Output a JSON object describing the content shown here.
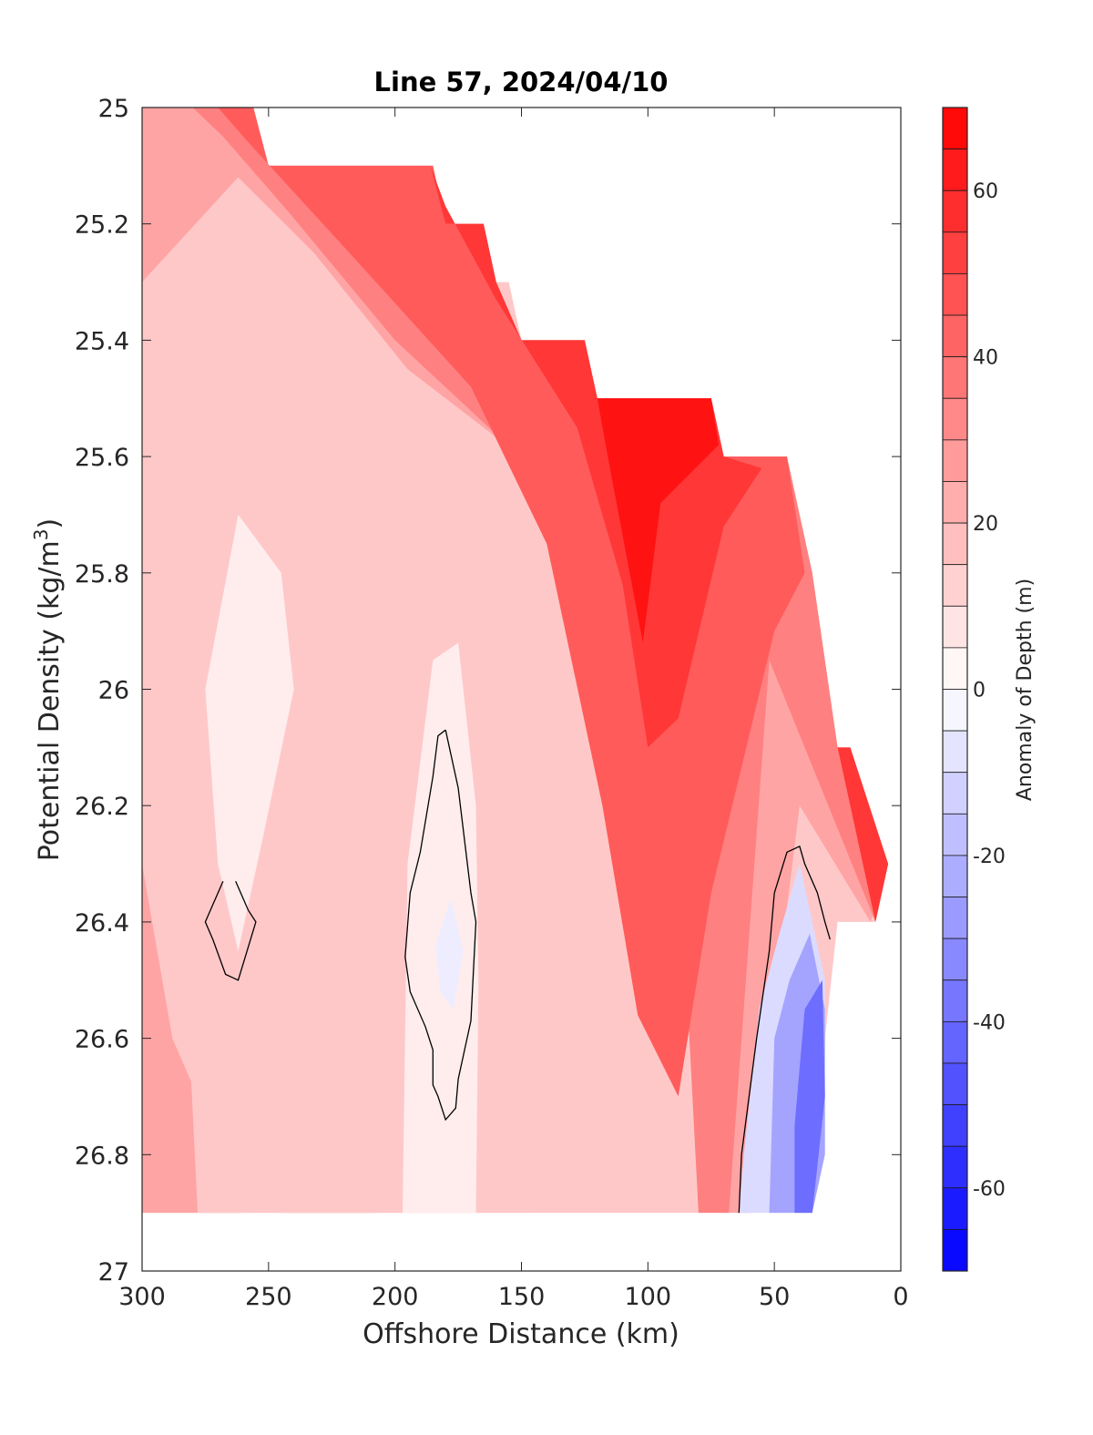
{
  "chart_data": {
    "type": "heatmap",
    "subtype": "filled-contour",
    "title": "Line 57, 2024/04/10",
    "xlabel": "Offshore Distance (km)",
    "ylabel": "Potential Density (kg/m",
    "ylabel_superscript": "3",
    "ylabel_suffix": ")",
    "colorbar_label": "Anomaly of Depth (m)",
    "xlim": [
      300,
      0
    ],
    "ylim": [
      25,
      27
    ],
    "x_reversed": true,
    "y_reversed": true,
    "xticks": [
      300,
      250,
      200,
      150,
      100,
      50,
      0
    ],
    "xtick_labels": [
      "300",
      "250",
      "200",
      "150",
      "100",
      "50",
      "0"
    ],
    "yticks": [
      25,
      25.2,
      25.4,
      25.6,
      25.8,
      26,
      26.2,
      26.4,
      26.6,
      26.8,
      27
    ],
    "ytick_labels": [
      "25",
      "25.2",
      "25.4",
      "25.6",
      "25.8",
      "26",
      "26.2",
      "26.4",
      "26.6",
      "26.8",
      "27"
    ],
    "clim": [
      -70,
      70
    ],
    "colorbar_ticks": [
      60,
      40,
      20,
      0,
      -20,
      -40,
      -60
    ],
    "colorbar_tick_labels": [
      "60",
      "40",
      "20",
      "0",
      "-20",
      "-40",
      "-60"
    ],
    "colorbar_levels": 28,
    "colormap": {
      "negative": "#0000ff",
      "zero": "#ffffff",
      "positive": "#ff0000"
    },
    "data_domain": {
      "top_boundary": [
        [
          300,
          25.0
        ],
        [
          256,
          25.0
        ],
        [
          250,
          25.1
        ],
        [
          185,
          25.1
        ],
        [
          180,
          25.2
        ],
        [
          165,
          25.2
        ],
        [
          160,
          25.3
        ],
        [
          155,
          25.3
        ],
        [
          150,
          25.4
        ],
        [
          125,
          25.4
        ],
        [
          120,
          25.5
        ],
        [
          75,
          25.5
        ],
        [
          70,
          25.6
        ],
        [
          45,
          25.6
        ],
        [
          35,
          25.8
        ],
        [
          25,
          26.1
        ],
        [
          20,
          26.1
        ],
        [
          5,
          26.3
        ],
        [
          10,
          26.4
        ],
        [
          25,
          26.4
        ],
        [
          30,
          26.6
        ],
        [
          35,
          26.8
        ],
        [
          35,
          26.9
        ]
      ],
      "bottom_density": 26.9
    },
    "regions": [
      {
        "value": 15,
        "polygon": [
          [
            300,
            25.0
          ],
          [
            256,
            25.0
          ],
          [
            250,
            25.1
          ],
          [
            185,
            25.1
          ],
          [
            180,
            25.2
          ],
          [
            165,
            25.2
          ],
          [
            160,
            25.3
          ],
          [
            155,
            25.3
          ],
          [
            150,
            25.4
          ],
          [
            125,
            25.4
          ],
          [
            120,
            25.5
          ],
          [
            75,
            25.5
          ],
          [
            70,
            25.6
          ],
          [
            45,
            25.6
          ],
          [
            35,
            25.8
          ],
          [
            25,
            26.1
          ],
          [
            20,
            26.1
          ],
          [
            5,
            26.3
          ],
          [
            10,
            26.4
          ],
          [
            25,
            26.4
          ],
          [
            30,
            26.6
          ],
          [
            35,
            26.8
          ],
          [
            35,
            26.9
          ],
          [
            300,
            26.9
          ]
        ]
      },
      {
        "value": 25,
        "polygon": [
          [
            300,
            25.0
          ],
          [
            280,
            25.0
          ],
          [
            250,
            25.12
          ],
          [
            185,
            25.12
          ],
          [
            180,
            25.2
          ],
          [
            165,
            25.2
          ],
          [
            160,
            25.3
          ],
          [
            150,
            25.4
          ],
          [
            120,
            25.5
          ],
          [
            70,
            25.6
          ],
          [
            45,
            25.62
          ],
          [
            35,
            25.85
          ],
          [
            25,
            26.15
          ],
          [
            8,
            26.35
          ],
          [
            12,
            26.4
          ],
          [
            40,
            26.2
          ],
          [
            60,
            26.9
          ],
          [
            70,
            26.9
          ],
          [
            78,
            26.4
          ],
          [
            92,
            26.1
          ],
          [
            118,
            25.8
          ],
          [
            150,
            25.6
          ],
          [
            195,
            25.45
          ],
          [
            232,
            25.25
          ],
          [
            262,
            25.12
          ],
          [
            300,
            25.3
          ]
        ]
      },
      {
        "value": 25,
        "polygon": [
          [
            300,
            26.3
          ],
          [
            288,
            26.6
          ],
          [
            270,
            26.78
          ],
          [
            260,
            26.9
          ],
          [
            300,
            26.9
          ]
        ]
      },
      {
        "value": 25,
        "polygon": [
          [
            244,
            26.9
          ],
          [
            238,
            26.62
          ],
          [
            230,
            26.48
          ],
          [
            212,
            26.5
          ],
          [
            203,
            26.68
          ],
          [
            208,
            26.9
          ]
        ]
      },
      {
        "value": 35,
        "polygon": [
          [
            280,
            25.0
          ],
          [
            256,
            25.0
          ],
          [
            250,
            25.1
          ],
          [
            185,
            25.1
          ],
          [
            180,
            25.2
          ],
          [
            165,
            25.2
          ],
          [
            160,
            25.3
          ],
          [
            150,
            25.4
          ],
          [
            125,
            25.4
          ],
          [
            120,
            25.5
          ],
          [
            75,
            25.5
          ],
          [
            70,
            25.6
          ],
          [
            45,
            25.6
          ],
          [
            35,
            25.8
          ],
          [
            25,
            26.1
          ],
          [
            20,
            26.1
          ],
          [
            5,
            26.3
          ],
          [
            10,
            26.4
          ],
          [
            38,
            26.1
          ],
          [
            52,
            25.95
          ],
          [
            68,
            26.9
          ],
          [
            80,
            26.9
          ],
          [
            86,
            26.4
          ],
          [
            100,
            26.15
          ],
          [
            126,
            25.8
          ],
          [
            158,
            25.57
          ],
          [
            200,
            25.4
          ],
          [
            242,
            25.18
          ],
          [
            268,
            25.05
          ]
        ]
      },
      {
        "value": 45,
        "polygon": [
          [
            270,
            25.0
          ],
          [
            256,
            25.0
          ],
          [
            250,
            25.1
          ],
          [
            185,
            25.1
          ],
          [
            180,
            25.2
          ],
          [
            165,
            25.2
          ],
          [
            160,
            25.3
          ],
          [
            150,
            25.4
          ],
          [
            125,
            25.4
          ],
          [
            120,
            25.5
          ],
          [
            75,
            25.5
          ],
          [
            70,
            25.6
          ],
          [
            45,
            25.6
          ],
          [
            38,
            25.8
          ],
          [
            50,
            25.9
          ],
          [
            75,
            26.35
          ],
          [
            88,
            26.7
          ],
          [
            104,
            26.56
          ],
          [
            118,
            26.2
          ],
          [
            140,
            25.75
          ],
          [
            170,
            25.48
          ],
          [
            218,
            25.25
          ],
          [
            258,
            25.06
          ]
        ]
      },
      {
        "value": 55,
        "polygon": [
          [
            186,
            25.1
          ],
          [
            180,
            25.2
          ],
          [
            165,
            25.2
          ],
          [
            160,
            25.3
          ],
          [
            150,
            25.4
          ],
          [
            125,
            25.4
          ],
          [
            120,
            25.5
          ],
          [
            75,
            25.5
          ],
          [
            70,
            25.6
          ],
          [
            55,
            25.62
          ],
          [
            70,
            25.72
          ],
          [
            88,
            26.05
          ],
          [
            100,
            26.1
          ],
          [
            110,
            25.82
          ],
          [
            128,
            25.55
          ],
          [
            160,
            25.33
          ],
          [
            180,
            25.17
          ]
        ]
      },
      {
        "value": 55,
        "polygon": [
          [
            25,
            26.1
          ],
          [
            20,
            26.1
          ],
          [
            5,
            26.3
          ],
          [
            10,
            26.4
          ],
          [
            20,
            26.2
          ]
        ]
      },
      {
        "value": 65,
        "polygon": [
          [
            120,
            25.5
          ],
          [
            75,
            25.5
          ],
          [
            72,
            25.58
          ],
          [
            95,
            25.68
          ],
          [
            102,
            25.92
          ],
          [
            115,
            25.62
          ]
        ]
      },
      {
        "value": 15,
        "polygon": [
          [
            145,
            26.9
          ],
          [
            160,
            26.6
          ],
          [
            165,
            26.4
          ],
          [
            163,
            26.0
          ],
          [
            175,
            25.85
          ],
          [
            195,
            25.9
          ],
          [
            222,
            25.8
          ],
          [
            250,
            25.9
          ],
          [
            265,
            26.2
          ],
          [
            282,
            26.55
          ],
          [
            278,
            26.9
          ]
        ]
      },
      {
        "value": 5,
        "polygon": [
          [
            262,
            25.7
          ],
          [
            275,
            26.0
          ],
          [
            270,
            26.3
          ],
          [
            262,
            26.45
          ],
          [
            252,
            26.25
          ],
          [
            240,
            26.0
          ],
          [
            245,
            25.8
          ]
        ]
      },
      {
        "value": 5,
        "polygon": [
          [
            168,
            26.9
          ],
          [
            167,
            26.5
          ],
          [
            168,
            26.2
          ],
          [
            175,
            25.92
          ],
          [
            185,
            25.95
          ],
          [
            195,
            26.3
          ],
          [
            197,
            26.9
          ]
        ]
      },
      {
        "value": 15,
        "polygon": [
          [
            285,
            25.9
          ],
          [
            292,
            26.1
          ],
          [
            288,
            26.2
          ],
          [
            281,
            26.1
          ]
        ]
      },
      {
        "value": -5,
        "polygon": [
          [
            178,
            26.36
          ],
          [
            173,
            26.45
          ],
          [
            177,
            26.55
          ],
          [
            182,
            26.52
          ],
          [
            184,
            26.44
          ]
        ]
      },
      {
        "value": -10,
        "polygon": [
          [
            64,
            26.9
          ],
          [
            62,
            26.8
          ],
          [
            56,
            26.55
          ],
          [
            48,
            26.42
          ],
          [
            40,
            26.3
          ],
          [
            30,
            26.5
          ],
          [
            30,
            26.7
          ],
          [
            35,
            26.9
          ]
        ]
      },
      {
        "value": -25,
        "polygon": [
          [
            52,
            26.9
          ],
          [
            50,
            26.6
          ],
          [
            44,
            26.5
          ],
          [
            36,
            26.42
          ],
          [
            30,
            26.55
          ],
          [
            30,
            26.8
          ],
          [
            35,
            26.9
          ]
        ]
      },
      {
        "value": -40,
        "polygon": [
          [
            42,
            26.9
          ],
          [
            42,
            26.75
          ],
          [
            38,
            26.55
          ],
          [
            31,
            26.5
          ],
          [
            30,
            26.7
          ],
          [
            35,
            26.9
          ]
        ]
      }
    ],
    "zero_contours": [
      [
        [
          263,
          26.33
        ],
        [
          258,
          26.38
        ],
        [
          255,
          26.4
        ],
        [
          262,
          26.5
        ],
        [
          267,
          26.49
        ],
        [
          272,
          26.43
        ],
        [
          275,
          26.4
        ],
        [
          268,
          26.33
        ]
      ],
      [
        [
          180,
          26.07
        ],
        [
          175,
          26.17
        ],
        [
          170,
          26.35
        ],
        [
          168,
          26.4
        ],
        [
          170,
          26.57
        ],
        [
          175,
          26.67
        ],
        [
          176,
          26.72
        ],
        [
          180,
          26.74
        ],
        [
          183,
          26.7
        ],
        [
          185,
          26.68
        ],
        [
          185,
          26.62
        ],
        [
          188,
          26.58
        ],
        [
          194,
          26.52
        ],
        [
          196,
          26.46
        ],
        [
          194,
          26.35
        ],
        [
          190,
          26.28
        ],
        [
          185,
          26.15
        ],
        [
          183,
          26.08
        ],
        [
          180,
          26.07
        ]
      ],
      [
        [
          64,
          26.9
        ],
        [
          63,
          26.8
        ],
        [
          57,
          26.6
        ],
        [
          52,
          26.45
        ],
        [
          50,
          26.35
        ],
        [
          45,
          26.28
        ],
        [
          40,
          26.27
        ],
        [
          38,
          26.3
        ],
        [
          33,
          26.35
        ],
        [
          30,
          26.4
        ],
        [
          28,
          26.43
        ]
      ]
    ]
  }
}
